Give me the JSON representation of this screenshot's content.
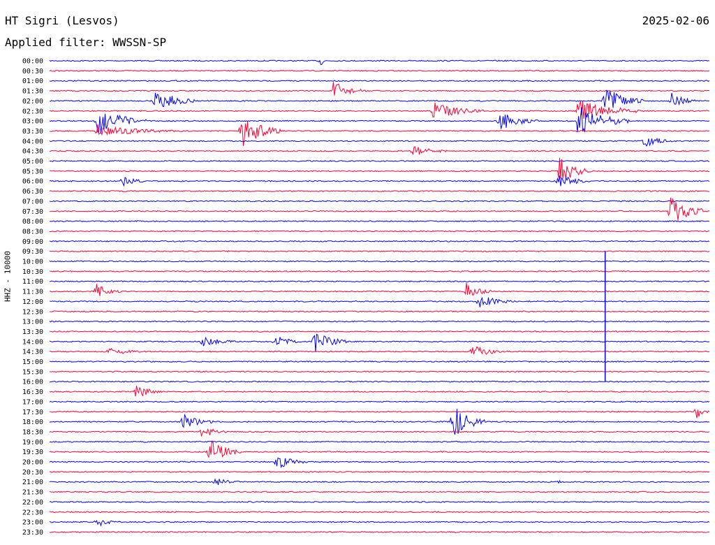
{
  "header": {
    "station": "HT Sigri (Lesvos)",
    "date": "2025-02-06",
    "filter": "Applied filter: WWSSN-SP"
  },
  "chart_data": {
    "type": "line",
    "title": "HT Sigri (Lesvos)",
    "ylabel": "HHZ - 10000",
    "colors": [
      "#0000ff",
      "#ff0033"
    ],
    "rows": [
      "00:00",
      "00:30",
      "01:00",
      "01:30",
      "02:00",
      "02:30",
      "03:00",
      "03:30",
      "04:00",
      "04:30",
      "05:00",
      "05:30",
      "06:00",
      "06:30",
      "07:00",
      "07:30",
      "08:00",
      "08:30",
      "09:00",
      "09:30",
      "10:00",
      "10:30",
      "11:00",
      "11:30",
      "12:00",
      "12:30",
      "13:00",
      "13:30",
      "14:00",
      "14:30",
      "15:00",
      "15:30",
      "16:00",
      "16:30",
      "17:00",
      "17:30",
      "18:00",
      "18:30",
      "19:00",
      "19:30",
      "20:00",
      "20:30",
      "21:00",
      "21:30",
      "22:00",
      "22:30",
      "23:00",
      "23:30"
    ],
    "events": [
      {
        "row": 0,
        "pos": 0.41,
        "amp": 10,
        "dur": 0.01
      },
      {
        "row": 3,
        "pos": 0.43,
        "amp": 14,
        "dur": 0.05
      },
      {
        "row": 4,
        "pos": 0.16,
        "amp": 18,
        "dur": 0.06
      },
      {
        "row": 4,
        "pos": 0.84,
        "amp": 22,
        "dur": 0.06
      },
      {
        "row": 4,
        "pos": 0.94,
        "amp": 14,
        "dur": 0.04
      },
      {
        "row": 5,
        "pos": 0.58,
        "amp": 14,
        "dur": 0.08
      },
      {
        "row": 5,
        "pos": 0.8,
        "amp": 18,
        "dur": 0.1
      },
      {
        "row": 6,
        "pos": 0.07,
        "amp": 22,
        "dur": 0.08
      },
      {
        "row": 6,
        "pos": 0.68,
        "amp": 16,
        "dur": 0.06
      },
      {
        "row": 6,
        "pos": 0.8,
        "amp": 24,
        "dur": 0.08
      },
      {
        "row": 7,
        "pos": 0.29,
        "amp": 26,
        "dur": 0.06
      },
      {
        "row": 7,
        "pos": 0.07,
        "amp": 10,
        "dur": 0.12
      },
      {
        "row": 8,
        "pos": 0.9,
        "amp": 10,
        "dur": 0.05
      },
      {
        "row": 9,
        "pos": 0.55,
        "amp": 8,
        "dur": 0.06
      },
      {
        "row": 11,
        "pos": 0.77,
        "amp": 22,
        "dur": 0.05
      },
      {
        "row": 12,
        "pos": 0.77,
        "amp": 12,
        "dur": 0.05
      },
      {
        "row": 12,
        "pos": 0.11,
        "amp": 8,
        "dur": 0.04
      },
      {
        "row": 15,
        "pos": 0.94,
        "amp": 22,
        "dur": 0.06
      },
      {
        "row": 23,
        "pos": 0.07,
        "amp": 12,
        "dur": 0.04
      },
      {
        "row": 23,
        "pos": 0.63,
        "amp": 14,
        "dur": 0.04
      },
      {
        "row": 24,
        "pos": 0.65,
        "amp": 10,
        "dur": 0.06
      },
      {
        "row": 28,
        "pos": 0.4,
        "amp": 18,
        "dur": 0.05
      },
      {
        "row": 28,
        "pos": 0.34,
        "amp": 12,
        "dur": 0.04
      },
      {
        "row": 28,
        "pos": 0.23,
        "amp": 8,
        "dur": 0.06
      },
      {
        "row": 29,
        "pos": 0.64,
        "amp": 12,
        "dur": 0.05
      },
      {
        "row": 29,
        "pos": 0.09,
        "amp": 8,
        "dur": 0.06
      },
      {
        "row": 33,
        "pos": 0.13,
        "amp": 12,
        "dur": 0.04
      },
      {
        "row": 35,
        "pos": 0.98,
        "amp": 12,
        "dur": 0.02
      },
      {
        "row": 36,
        "pos": 0.61,
        "amp": 28,
        "dur": 0.05
      },
      {
        "row": 36,
        "pos": 0.2,
        "amp": 14,
        "dur": 0.05
      },
      {
        "row": 37,
        "pos": 0.23,
        "amp": 10,
        "dur": 0.04
      },
      {
        "row": 39,
        "pos": 0.24,
        "amp": 22,
        "dur": 0.05
      },
      {
        "row": 40,
        "pos": 0.34,
        "amp": 14,
        "dur": 0.05
      },
      {
        "row": 42,
        "pos": 0.77,
        "amp": 8,
        "dur": 0.01
      },
      {
        "row": 42,
        "pos": 0.25,
        "amp": 6,
        "dur": 0.05
      },
      {
        "row": 46,
        "pos": 0.07,
        "amp": 8,
        "dur": 0.04
      }
    ],
    "spike": {
      "row": 19,
      "pos": 0.842,
      "to_row": 32
    }
  }
}
